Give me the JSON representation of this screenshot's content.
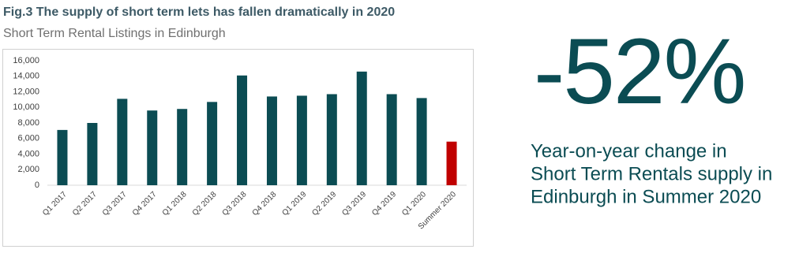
{
  "chart_data": {
    "type": "bar",
    "title": "Fig.3 The supply of short term lets has fallen dramatically in 2020",
    "subtitle": "Short Term Rental Listings in Edinburgh",
    "categories": [
      "Q1 2017",
      "Q2 2017",
      "Q3 2017",
      "Q4 2017",
      "Q1 2018",
      "Q2 2018",
      "Q3 2018",
      "Q4 2018",
      "Q1 2019",
      "Q2 2019",
      "Q3 2019",
      "Q4 2019",
      "Q1 2020",
      "Summer 2020"
    ],
    "values": [
      7100,
      8000,
      11100,
      9600,
      9800,
      10700,
      14100,
      11400,
      11500,
      11700,
      14600,
      11700,
      11200,
      5600
    ],
    "colors": [
      "#0b4c53",
      "#0b4c53",
      "#0b4c53",
      "#0b4c53",
      "#0b4c53",
      "#0b4c53",
      "#0b4c53",
      "#0b4c53",
      "#0b4c53",
      "#0b4c53",
      "#0b4c53",
      "#0b4c53",
      "#0b4c53",
      "#c00000"
    ],
    "ylim": [
      0,
      16000
    ],
    "yticks": [
      0,
      {
        "value": 2000,
        "label": "2,000"
      },
      {
        "value": 4000,
        "label": "4,000"
      },
      {
        "value": 6000,
        "label": "6,000"
      },
      {
        "value": 8000,
        "label": "8,000"
      },
      {
        "value": 10000,
        "label": "10,000"
      },
      {
        "value": 12000,
        "label": "12,000"
      },
      {
        "value": 14000,
        "label": "14,000"
      },
      {
        "value": 16000,
        "label": "16,000"
      }
    ],
    "grid": false
  },
  "callout": {
    "headline": "-52%",
    "lines": [
      "Year-on-year change in",
      "Short Term Rentals supply in",
      "Edinburgh in Summer 2020"
    ]
  }
}
